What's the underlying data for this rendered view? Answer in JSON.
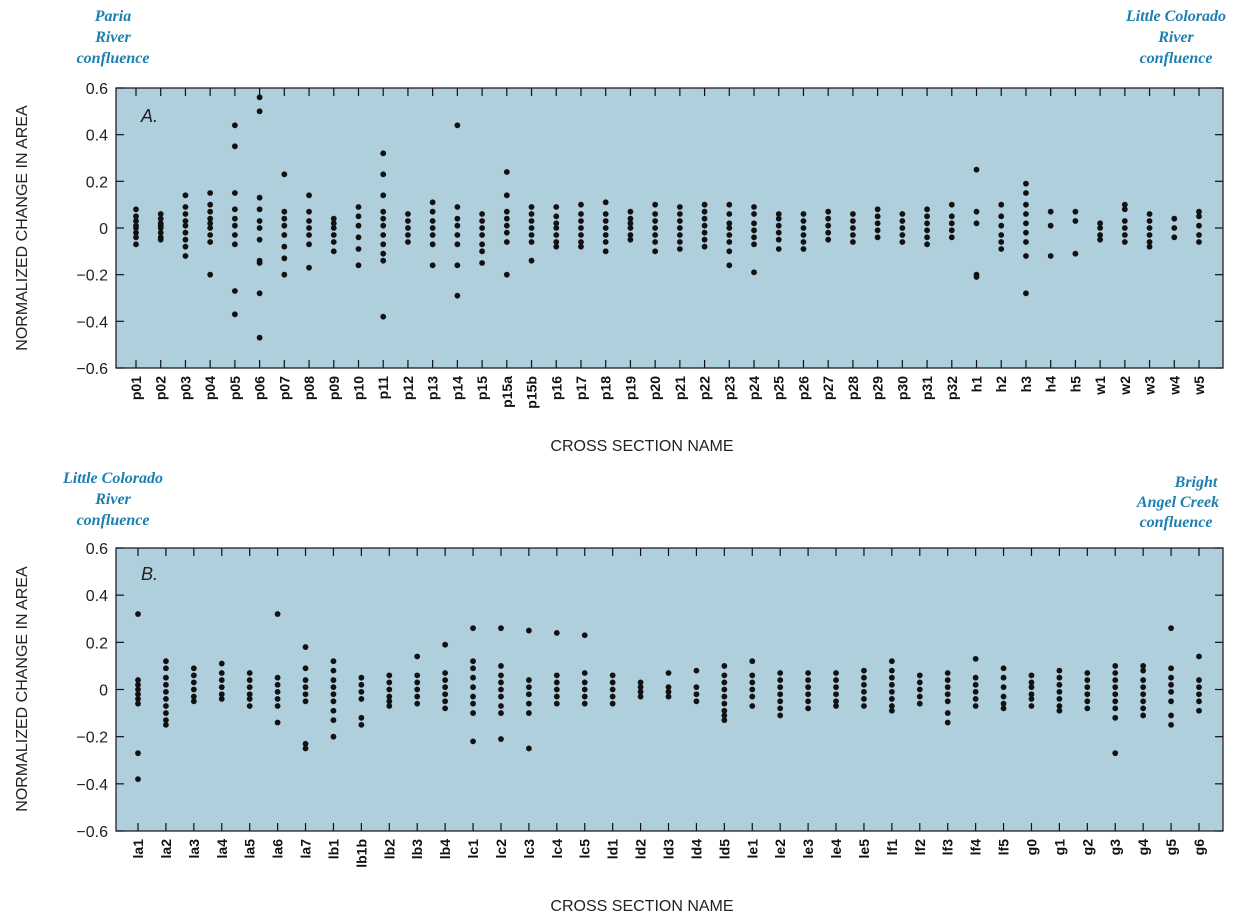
{
  "chart_data": [
    {
      "type": "scatter",
      "panel_label": "A.",
      "ylabel": "NORMALIZED CHANGE IN AREA",
      "xlabel": "CROSS SECTION NAME",
      "ylim": [
        -0.6,
        0.6
      ],
      "yticks": [
        "0.6",
        "0.4",
        "0.2",
        "0",
        "−0.2",
        "−0.4",
        "−0.6"
      ],
      "ytick_values": [
        0.6,
        0.4,
        0.2,
        0,
        -0.2,
        -0.4,
        -0.6
      ],
      "background_color": "#afcfdc",
      "annotation_left": [
        "Paria",
        "River",
        "confluence"
      ],
      "annotation_right": [
        "Little Colorado",
        "River",
        "confluence"
      ],
      "categories": [
        "p01",
        "p02",
        "p03",
        "p04",
        "p05",
        "p06",
        "p07",
        "p08",
        "p09",
        "p10",
        "p11",
        "p12",
        "p13",
        "p14",
        "p15",
        "p15a",
        "p15b",
        "p16",
        "p17",
        "p18",
        "p19",
        "p20",
        "p21",
        "p22",
        "p23",
        "p24",
        "p25",
        "p26",
        "p27",
        "p28",
        "p29",
        "p30",
        "p31",
        "p32",
        "h1",
        "h2",
        "h3",
        "h4",
        "h5",
        "w1",
        "w2",
        "w3",
        "w4",
        "w5"
      ],
      "points": [
        [
          0.08,
          0.05,
          0.03,
          0.01,
          0,
          -0.02,
          -0.04,
          -0.07
        ],
        [
          0.06,
          0.04,
          0.02,
          0.01,
          0,
          -0.02,
          -0.04,
          -0.05
        ],
        [
          0.14,
          0.09,
          0.06,
          0.03,
          0.01,
          -0.02,
          -0.05,
          -0.08,
          -0.12
        ],
        [
          0.15,
          0.1,
          0.07,
          0.04,
          0.02,
          0,
          -0.03,
          -0.06,
          -0.2
        ],
        [
          0.44,
          0.35,
          0.15,
          0.08,
          0.04,
          0.01,
          -0.03,
          -0.07,
          -0.27,
          -0.37
        ],
        [
          0.56,
          0.5,
          0.13,
          0.08,
          0.03,
          0,
          -0.05,
          -0.14,
          -0.15,
          -0.28,
          -0.47
        ],
        [
          0.23,
          0.07,
          0.04,
          0.01,
          -0.03,
          -0.08,
          -0.13,
          -0.2
        ],
        [
          0.14,
          0.07,
          0.03,
          0,
          -0.03,
          -0.07,
          -0.17
        ],
        [
          0.04,
          0.02,
          0,
          -0.03,
          -0.06,
          -0.1
        ],
        [
          0.09,
          0.05,
          0.01,
          -0.04,
          -0.09,
          -0.16
        ],
        [
          0.32,
          0.23,
          0.14,
          0.07,
          0.04,
          0.01,
          -0.03,
          -0.07,
          -0.11,
          -0.14,
          -0.38
        ],
        [
          0.06,
          0.03,
          0,
          -0.03,
          -0.06
        ],
        [
          0.11,
          0.07,
          0.03,
          0,
          -0.03,
          -0.07,
          -0.16
        ],
        [
          0.44,
          0.09,
          0.04,
          0.01,
          -0.03,
          -0.07,
          -0.16,
          -0.29
        ],
        [
          0.06,
          0.03,
          0,
          -0.03,
          -0.07,
          -0.1,
          -0.15
        ],
        [
          0.24,
          0.14,
          0.07,
          0.04,
          0.01,
          -0.02,
          -0.06,
          -0.2
        ],
        [
          0.09,
          0.06,
          0.03,
          0,
          -0.03,
          -0.06,
          -0.14
        ],
        [
          0.09,
          0.05,
          0.02,
          0,
          -0.03,
          -0.06,
          -0.08
        ],
        [
          0.1,
          0.06,
          0.03,
          0,
          -0.03,
          -0.06,
          -0.08
        ],
        [
          0.11,
          0.06,
          0.03,
          0,
          -0.03,
          -0.06,
          -0.1
        ],
        [
          0.07,
          0.04,
          0.02,
          0,
          -0.03,
          -0.05
        ],
        [
          0.1,
          0.06,
          0.03,
          0,
          -0.03,
          -0.06,
          -0.1
        ],
        [
          0.09,
          0.06,
          0.03,
          0,
          -0.03,
          -0.06,
          -0.09
        ],
        [
          0.1,
          0.07,
          0.04,
          0.01,
          -0.02,
          -0.05,
          -0.08
        ],
        [
          0.1,
          0.06,
          0.02,
          0,
          -0.03,
          -0.06,
          -0.1,
          -0.16
        ],
        [
          0.09,
          0.06,
          0.02,
          -0.01,
          -0.04,
          -0.07,
          -0.19
        ],
        [
          0.06,
          0.04,
          0.01,
          -0.02,
          -0.05,
          -0.09
        ],
        [
          0.06,
          0.03,
          0,
          -0.03,
          -0.06,
          -0.09
        ],
        [
          0.07,
          0.04,
          0.01,
          -0.02,
          -0.05
        ],
        [
          0.06,
          0.03,
          0,
          -0.03,
          -0.06
        ],
        [
          0.08,
          0.05,
          0.02,
          -0.01,
          -0.04
        ],
        [
          0.06,
          0.03,
          0,
          -0.03,
          -0.06
        ],
        [
          0.08,
          0.05,
          0.02,
          -0.01,
          -0.04,
          -0.07
        ],
        [
          0.1,
          0.05,
          0.02,
          -0.01,
          -0.04
        ],
        [
          0.25,
          0.07,
          0.02,
          -0.2,
          -0.21
        ],
        [
          0.1,
          0.05,
          0.01,
          -0.03,
          -0.06,
          -0.09
        ],
        [
          0.19,
          0.15,
          0.1,
          0.06,
          0.02,
          -0.02,
          -0.06,
          -0.12,
          -0.28
        ],
        [
          0.07,
          0.01,
          -0.12
        ],
        [
          0.07,
          0.03,
          -0.11
        ],
        [
          0.02,
          0,
          -0.03,
          -0.05
        ],
        [
          0.1,
          0.08,
          0.03,
          0,
          -0.03,
          -0.06
        ],
        [
          0.06,
          0.03,
          0,
          -0.03,
          -0.06,
          -0.08
        ],
        [
          0.04,
          0,
          -0.04
        ],
        [
          0.07,
          0.05,
          0.01,
          -0.03,
          -0.06
        ]
      ]
    },
    {
      "type": "scatter",
      "panel_label": "B.",
      "ylabel": "NORMALIZED CHANGE IN AREA",
      "xlabel": "CROSS SECTION NAME",
      "ylim": [
        -0.6,
        0.6
      ],
      "yticks": [
        "0.6",
        "0.4",
        "0.2",
        "0",
        "−0.2",
        "−0.4",
        "−0.6"
      ],
      "ytick_values": [
        0.6,
        0.4,
        0.2,
        0,
        -0.2,
        -0.4,
        -0.6
      ],
      "background_color": "#afcfdc",
      "annotation_left": [
        "Little Colorado",
        "River",
        "confluence"
      ],
      "annotation_right": [
        "Bright",
        "Angel Creek",
        "confluence"
      ],
      "categories": [
        "la1",
        "la2",
        "la3",
        "la4",
        "la5",
        "la6",
        "la7",
        "lb1",
        "lb1b",
        "lb2",
        "lb3",
        "lb4",
        "lc1",
        "lc2",
        "lc3",
        "lc4",
        "lc5",
        "ld1",
        "ld2",
        "ld3",
        "ld4",
        "ld5",
        "le1",
        "le2",
        "le3",
        "le4",
        "le5",
        "lf1",
        "lf2",
        "lf3",
        "lf4",
        "lf5",
        "g0",
        "g1",
        "g2",
        "g3",
        "g4",
        "g5",
        "g6"
      ],
      "points": [
        [
          0.32,
          0.04,
          0.02,
          0,
          -0.02,
          -0.04,
          -0.06,
          -0.27,
          -0.38
        ],
        [
          0.12,
          0.09,
          0.05,
          0.02,
          -0.01,
          -0.04,
          -0.07,
          -0.1,
          -0.13,
          -0.15
        ],
        [
          0.09,
          0.06,
          0.03,
          0,
          -0.03,
          -0.05
        ],
        [
          0.11,
          0.07,
          0.04,
          0.01,
          -0.02,
          -0.04
        ],
        [
          0.07,
          0.04,
          0.01,
          -0.02,
          -0.04,
          -0.07
        ],
        [
          0.32,
          0.05,
          0.02,
          -0.01,
          -0.04,
          -0.07,
          -0.14
        ],
        [
          0.18,
          0.09,
          0.04,
          0.01,
          -0.02,
          -0.05,
          -0.23,
          -0.25
        ],
        [
          0.12,
          0.08,
          0.04,
          0.01,
          -0.02,
          -0.05,
          -0.09,
          -0.13,
          -0.2
        ],
        [
          0.05,
          0.02,
          -0.01,
          -0.04,
          -0.12,
          -0.15
        ],
        [
          0.06,
          0.03,
          0,
          -0.03,
          -0.05,
          -0.07
        ],
        [
          0.14,
          0.06,
          0.03,
          0,
          -0.03,
          -0.06
        ],
        [
          0.19,
          0.07,
          0.04,
          0.01,
          -0.02,
          -0.05,
          -0.08
        ],
        [
          0.26,
          0.12,
          0.09,
          0.05,
          0.01,
          -0.03,
          -0.06,
          -0.1,
          -0.22
        ],
        [
          0.26,
          0.1,
          0.06,
          0.03,
          0,
          -0.03,
          -0.07,
          -0.1,
          -0.21
        ],
        [
          0.25,
          0.04,
          0.01,
          -0.02,
          -0.06,
          -0.1,
          -0.25
        ],
        [
          0.24,
          0.06,
          0.03,
          0,
          -0.03,
          -0.06
        ],
        [
          0.23,
          0.07,
          0.03,
          0,
          -0.03,
          -0.06
        ],
        [
          0.06,
          0.03,
          0,
          -0.03,
          -0.06
        ],
        [
          0.03,
          0.01,
          -0.01,
          -0.03
        ],
        [
          0.07,
          0.01,
          -0.01,
          -0.03
        ],
        [
          0.08,
          0.01,
          -0.02,
          -0.05
        ],
        [
          0.1,
          0.06,
          0.03,
          0,
          -0.03,
          -0.06,
          -0.09,
          -0.11,
          -0.13
        ],
        [
          0.12,
          0.06,
          0.03,
          0,
          -0.03,
          -0.07
        ],
        [
          0.07,
          0.04,
          0.01,
          -0.02,
          -0.05,
          -0.08,
          -0.11
        ],
        [
          0.07,
          0.04,
          0.01,
          -0.02,
          -0.05,
          -0.08
        ],
        [
          0.07,
          0.04,
          0.01,
          -0.02,
          -0.05,
          -0.07
        ],
        [
          0.08,
          0.05,
          0.02,
          -0.01,
          -0.04,
          -0.07
        ],
        [
          0.12,
          0.08,
          0.05,
          0.02,
          -0.01,
          -0.04,
          -0.07,
          -0.09
        ],
        [
          0.06,
          0.03,
          0,
          -0.03,
          -0.06
        ],
        [
          0.07,
          0.04,
          0.01,
          -0.02,
          -0.05,
          -0.1,
          -0.14
        ],
        [
          0.13,
          0.05,
          0.02,
          -0.01,
          -0.04,
          -0.07
        ],
        [
          0.09,
          0.05,
          0.01,
          -0.03,
          -0.06,
          -0.08
        ],
        [
          0.06,
          0.03,
          0.01,
          -0.02,
          -0.04,
          -0.07
        ],
        [
          0.08,
          0.05,
          0.02,
          -0.01,
          -0.04,
          -0.07,
          -0.09
        ],
        [
          0.07,
          0.04,
          0.01,
          -0.02,
          -0.05,
          -0.08
        ],
        [
          0.1,
          0.07,
          0.04,
          0.01,
          -0.02,
          -0.05,
          -0.08,
          -0.12,
          -0.27
        ],
        [
          0.1,
          0.08,
          0.04,
          0.01,
          -0.02,
          -0.05,
          -0.08,
          -0.11
        ],
        [
          0.26,
          0.09,
          0.05,
          0.02,
          -0.01,
          -0.05,
          -0.11,
          -0.15
        ],
        [
          0.14,
          0.04,
          0.01,
          -0.02,
          -0.05,
          -0.09
        ]
      ]
    }
  ]
}
